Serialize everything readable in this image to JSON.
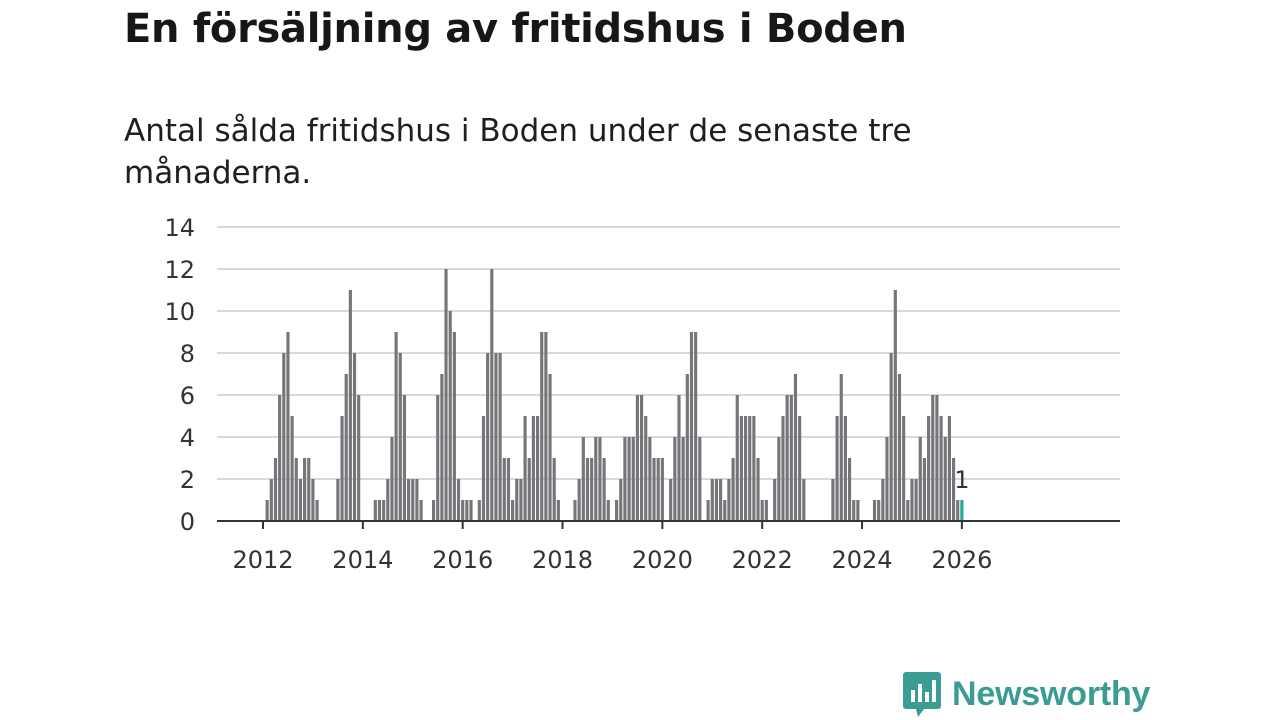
{
  "title": "En försäljning av fritidshus i Boden",
  "subtitle": "Antal sålda fritidshus i Boden under de senaste tre månaderna.",
  "brand": {
    "name": "Newsworthy"
  },
  "colors": {
    "bar": "#76757a",
    "highlight": "#27a59b",
    "grid": "#d9d9d9",
    "axis": "#333333",
    "brand": "#3a9c93"
  },
  "chart_data": {
    "type": "bar",
    "title": "En försäljning av fritidshus i Boden",
    "subtitle": "Antal sålda fritidshus i Boden under de senaste tre månaderna.",
    "xlabel": "",
    "ylabel": "",
    "x_unit": "month",
    "start": "2012-01",
    "end": "2026-01",
    "ylim": [
      0,
      14
    ],
    "yticks": [
      0,
      2,
      4,
      6,
      8,
      10,
      12,
      14
    ],
    "xticks": [
      "2012",
      "2014",
      "2016",
      "2018",
      "2020",
      "2022",
      "2024",
      "2026"
    ],
    "grid": true,
    "values": [
      0,
      1,
      2,
      3,
      6,
      8,
      9,
      5,
      3,
      2,
      3,
      3,
      2,
      1,
      0,
      0,
      0,
      0,
      2,
      5,
      7,
      11,
      8,
      6,
      0,
      0,
      0,
      1,
      1,
      1,
      2,
      4,
      9,
      8,
      6,
      2,
      2,
      2,
      1,
      0,
      0,
      1,
      6,
      7,
      12,
      10,
      9,
      2,
      1,
      1,
      1,
      0,
      1,
      5,
      8,
      12,
      8,
      8,
      3,
      3,
      1,
      2,
      2,
      5,
      3,
      5,
      5,
      9,
      9,
      7,
      3,
      1,
      0,
      0,
      0,
      1,
      2,
      4,
      3,
      3,
      4,
      4,
      3,
      1,
      0,
      1,
      2,
      4,
      4,
      4,
      6,
      6,
      5,
      4,
      3,
      3,
      3,
      0,
      2,
      4,
      6,
      4,
      7,
      9,
      9,
      4,
      0,
      1,
      2,
      2,
      2,
      1,
      2,
      3,
      6,
      5,
      5,
      5,
      5,
      3,
      1,
      1,
      0,
      2,
      4,
      5,
      6,
      6,
      7,
      5,
      2,
      0,
      0,
      0,
      0,
      0,
      0,
      2,
      5,
      7,
      5,
      3,
      1,
      1,
      0,
      0,
      0,
      1,
      1,
      2,
      4,
      8,
      11,
      7,
      5,
      1,
      2,
      2,
      4,
      3,
      5,
      6,
      6,
      5,
      4,
      5,
      3,
      1,
      1
    ],
    "highlight_last": true,
    "annotation": {
      "label": "1"
    }
  }
}
